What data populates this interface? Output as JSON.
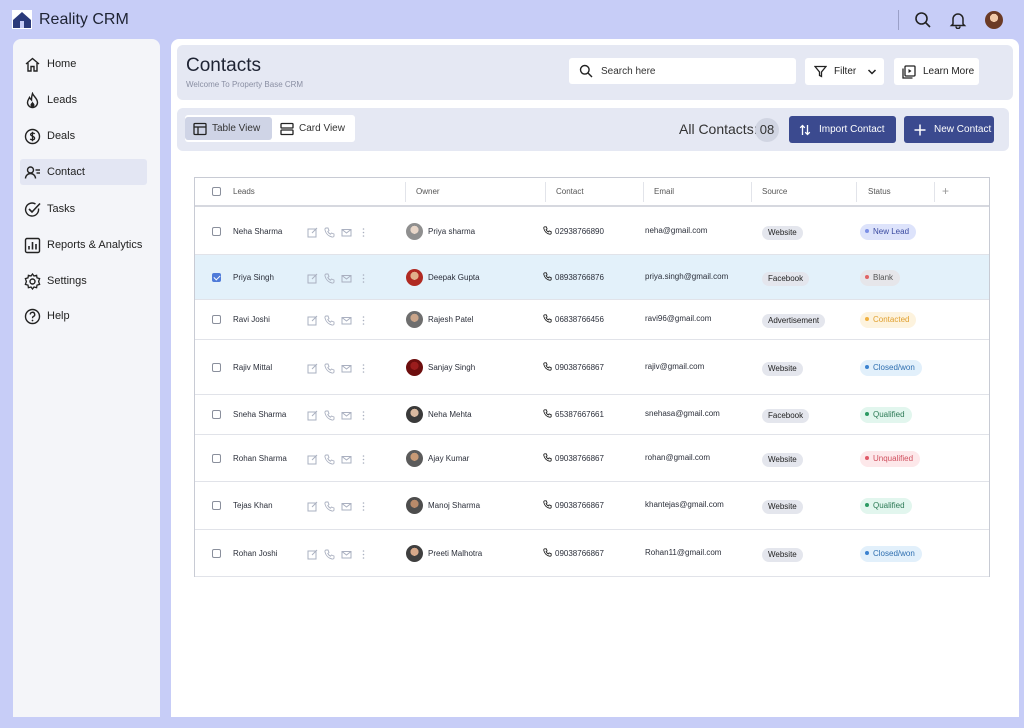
{
  "app": {
    "title": "Reality CRM"
  },
  "sidebar": {
    "items": [
      {
        "label": "Home",
        "icon": "home-icon"
      },
      {
        "label": "Leads",
        "icon": "flame-icon"
      },
      {
        "label": "Deals",
        "icon": "dollar-icon"
      },
      {
        "label": "Contact",
        "icon": "contacts-icon",
        "active": true
      },
      {
        "label": "Tasks",
        "icon": "task-check-icon"
      },
      {
        "label": "Reports & Analytics",
        "icon": "chart-icon"
      },
      {
        "label": "Settings",
        "icon": "gear-icon"
      },
      {
        "label": "Help",
        "icon": "help-icon"
      }
    ]
  },
  "header": {
    "title": "Contacts",
    "subtitle": "Welcome To Property Base CRM",
    "search_placeholder": "Search here",
    "filter_label": "Filter",
    "learn_more_label": "Learn More"
  },
  "toolbar": {
    "table_view_label": "Table View",
    "card_view_label": "Card View",
    "all_contacts_label": "All Contacts:",
    "all_contacts_count": "08",
    "import_label": "Import Contact",
    "new_label": "New Contact"
  },
  "table": {
    "columns": [
      "Leads",
      "Owner",
      "Contact",
      "Email",
      "Source",
      "Status"
    ],
    "add_column": "+",
    "rows": [
      {
        "lead": "Neha Sharma",
        "owner": "Priya sharma",
        "phone": "02938766890",
        "email": "neha@gmail.com",
        "source": "Website",
        "status": "New Lead",
        "checked": false
      },
      {
        "lead": "Priya Singh",
        "owner": "Deepak Gupta",
        "phone": "08938766876",
        "email": "priya.singh@gmail.com",
        "source": "Facebook",
        "status": "Blank",
        "checked": true
      },
      {
        "lead": "Ravi Joshi",
        "owner": "Rajesh Patel",
        "phone": "06838766456",
        "email": "ravi96@gmail.com",
        "source": "Advertisement",
        "status": "Contacted",
        "checked": false
      },
      {
        "lead": "Rajiv Mittal",
        "owner": "Sanjay Singh",
        "phone": "09038766867",
        "email": "rajiv@gmail.com",
        "source": "Website",
        "status": "Closed/won",
        "checked": false
      },
      {
        "lead": "Sneha Sharma",
        "owner": "Neha Mehta",
        "phone": "65387667661",
        "email": "snehasa@gmail.com",
        "source": "Facebook",
        "status": "Qualified",
        "checked": false
      },
      {
        "lead": "Rohan Sharma",
        "owner": "Ajay Kumar",
        "phone": "09038766867",
        "email": "rohan@gmail.com",
        "source": "Website",
        "status": "Unqualified",
        "checked": false
      },
      {
        "lead": "Tejas Khan",
        "owner": "Manoj Sharma",
        "phone": "09038766867",
        "email": "khantejas@gmail.com",
        "source": "Website",
        "status": "Qualified",
        "checked": false
      },
      {
        "lead": "Rohan Joshi",
        "owner": "Preeti Malhotra",
        "phone": "09038766867",
        "email": "Rohan11@gmail.com",
        "source": "Website",
        "status": "Closed/won",
        "checked": false
      }
    ]
  },
  "status_colors": {
    "New Lead": {
      "bg": "#dde3fb",
      "fg": "#3a4aa0",
      "dot": "#7c8fe6"
    },
    "Blank": {
      "bg": "#e6e6ea",
      "fg": "#555555",
      "dot": "#e06464"
    },
    "Contacted": {
      "bg": "#fdf3de",
      "fg": "#e0a030",
      "dot": "#f0b040"
    },
    "Closed/won": {
      "bg": "#e2f0fb",
      "fg": "#2f6fb0",
      "dot": "#3b82d0"
    },
    "Qualified": {
      "bg": "#e2f6ee",
      "fg": "#2c7a55",
      "dot": "#2c9a63"
    },
    "Unqualified": {
      "bg": "#fde8ea",
      "fg": "#d0505e",
      "dot": "#e05a68"
    }
  },
  "colors": {
    "accent": "#3b4a8f",
    "background": "#c7cdf7",
    "selected_row": "#e3f1fa"
  }
}
